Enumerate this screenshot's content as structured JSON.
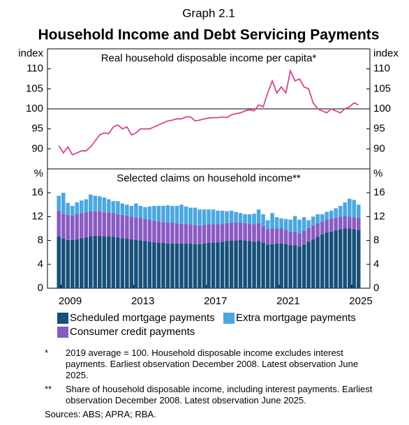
{
  "header": {
    "label": "Graph 2.1",
    "title": "Household Income and Debt Servicing Payments"
  },
  "chart_data": [
    {
      "type": "line",
      "title": "Real household disposable income per capita*",
      "ylabel": "index",
      "x": [
        2008.875,
        2009.125,
        2009.375,
        2009.625,
        2009.875,
        2010.125,
        2010.375,
        2010.625,
        2010.875,
        2011.125,
        2011.375,
        2011.625,
        2011.875,
        2012.125,
        2012.375,
        2012.625,
        2012.875,
        2013.125,
        2013.375,
        2013.625,
        2013.875,
        2014.125,
        2014.375,
        2014.625,
        2014.875,
        2015.125,
        2015.375,
        2015.625,
        2015.875,
        2016.125,
        2016.375,
        2016.625,
        2016.875,
        2017.125,
        2017.375,
        2017.625,
        2017.875,
        2018.125,
        2018.375,
        2018.625,
        2018.875,
        2019.125,
        2019.375,
        2019.625,
        2019.875,
        2020.125,
        2020.375,
        2020.625,
        2020.875,
        2021.125,
        2021.375,
        2021.625,
        2021.875,
        2022.125,
        2022.375,
        2022.625,
        2022.875,
        2023.125,
        2023.375,
        2023.625,
        2023.875,
        2024.125,
        2024.375,
        2024.625,
        2024.875,
        2025.125,
        2025.375
      ],
      "series": [
        {
          "name": "Real household disposable income per capita",
          "color": "#d6458f",
          "values": [
            90.8,
            89,
            90.5,
            88.5,
            89,
            89.5,
            89.5,
            90.5,
            92,
            93.5,
            94,
            93.8,
            95.5,
            96,
            95,
            95.5,
            93.5,
            94,
            95,
            95,
            95,
            95.5,
            96,
            96.5,
            97,
            97.2,
            97.5,
            97.5,
            98,
            98,
            97,
            97.2,
            97.5,
            97.7,
            97.8,
            97.8,
            98,
            97.8,
            98.5,
            98.8,
            99,
            99.5,
            99.8,
            99.5,
            101,
            100.5,
            104,
            107,
            104,
            105.5,
            104,
            109.5,
            107,
            107.5,
            105.5,
            105,
            101.5,
            100,
            99.5,
            99,
            100,
            99.5,
            99,
            100,
            100.5,
            101.5,
            101
          ]
        }
      ],
      "xlim": [
        2008.25,
        2026
      ],
      "ylim": [
        85,
        115
      ],
      "yticks": [
        90,
        95,
        100,
        105,
        110
      ],
      "reference_line": 100
    },
    {
      "type": "bar",
      "stacked": true,
      "title": "Selected claims on household income**",
      "ylabel": "%",
      "x": [
        2008.875,
        2009.125,
        2009.375,
        2009.625,
        2009.875,
        2010.125,
        2010.375,
        2010.625,
        2010.875,
        2011.125,
        2011.375,
        2011.625,
        2011.875,
        2012.125,
        2012.375,
        2012.625,
        2012.875,
        2013.125,
        2013.375,
        2013.625,
        2013.875,
        2014.125,
        2014.375,
        2014.625,
        2014.875,
        2015.125,
        2015.375,
        2015.625,
        2015.875,
        2016.125,
        2016.375,
        2016.625,
        2016.875,
        2017.125,
        2017.375,
        2017.625,
        2017.875,
        2018.125,
        2018.375,
        2018.625,
        2018.875,
        2019.125,
        2019.375,
        2019.625,
        2019.875,
        2020.125,
        2020.375,
        2020.625,
        2020.875,
        2021.125,
        2021.375,
        2021.625,
        2021.875,
        2022.125,
        2022.375,
        2022.625,
        2022.875,
        2023.125,
        2023.375,
        2023.625,
        2023.875,
        2024.125,
        2024.375,
        2024.625,
        2024.875,
        2025.125,
        2025.375
      ],
      "series": [
        {
          "name": "Scheduled mortgage payments",
          "color": "#17507a",
          "values": [
            8.7,
            8.3,
            8.1,
            8.1,
            8.2,
            8.4,
            8.5,
            8.7,
            8.8,
            8.8,
            8.7,
            8.7,
            8.6,
            8.5,
            8.4,
            8.3,
            8.2,
            8.1,
            8.0,
            7.9,
            7.8,
            7.7,
            7.6,
            7.6,
            7.5,
            7.5,
            7.5,
            7.5,
            7.5,
            7.5,
            7.4,
            7.4,
            7.5,
            7.6,
            7.6,
            7.7,
            7.8,
            7.9,
            8.0,
            8.0,
            8.1,
            8.0,
            7.9,
            7.8,
            7.9,
            7.6,
            7.3,
            7.4,
            7.5,
            7.5,
            7.4,
            7.2,
            7.2,
            7.0,
            7.3,
            7.8,
            8.2,
            8.6,
            9.0,
            9.3,
            9.5,
            9.7,
            9.9,
            10.0,
            10.0,
            9.9,
            9.8
          ]
        },
        {
          "name": "Consumer credit payments",
          "color": "#8a5ac4",
          "values": [
            4.3,
            4.2,
            4.2,
            4.1,
            4.2,
            4.2,
            4.2,
            4.2,
            4.1,
            4.1,
            4.0,
            4.0,
            4.0,
            3.9,
            3.9,
            3.8,
            3.8,
            3.8,
            3.8,
            3.7,
            3.7,
            3.6,
            3.6,
            3.5,
            3.5,
            3.5,
            3.4,
            3.3,
            3.3,
            3.2,
            3.2,
            3.1,
            3.1,
            3.1,
            3.1,
            3.0,
            3.0,
            3.0,
            3.0,
            3.0,
            2.9,
            2.9,
            2.9,
            2.9,
            3.0,
            2.8,
            2.6,
            2.6,
            2.5,
            2.5,
            2.4,
            2.3,
            2.3,
            2.2,
            2.3,
            2.3,
            2.3,
            2.3,
            2.2,
            2.2,
            2.2,
            2.1,
            2.1,
            2.1,
            2.0,
            2.0,
            2.0
          ]
        },
        {
          "name": "Extra mortgage payments",
          "color": "#4aa8e0",
          "values": [
            2.5,
            3.5,
            2.0,
            1.6,
            2.0,
            2.1,
            2.2,
            2.8,
            2.6,
            2.5,
            2.5,
            2.2,
            2.0,
            2.2,
            1.9,
            1.9,
            1.8,
            2.3,
            2.0,
            2.0,
            2.2,
            2.5,
            2.6,
            2.7,
            2.9,
            2.8,
            2.9,
            3.2,
            2.9,
            2.8,
            2.9,
            2.7,
            2.6,
            2.5,
            2.5,
            2.3,
            2.2,
            2.0,
            2.0,
            1.8,
            1.6,
            1.5,
            1.6,
            1.8,
            2.3,
            2.0,
            1.5,
            2.6,
            1.9,
            1.7,
            1.8,
            2.0,
            2.6,
            2.3,
            2.3,
            1.3,
            1.5,
            1.5,
            1.2,
            1.3,
            1.3,
            1.6,
            1.8,
            2.3,
            3.0,
            2.9,
            2.2
          ]
        }
      ],
      "xlim": [
        2008.25,
        2026
      ],
      "ylim": [
        0,
        20
      ],
      "yticks": [
        0,
        4,
        8,
        12,
        16
      ],
      "xticks": [
        2009,
        2013,
        2017,
        2021,
        2025
      ],
      "legend": "bottom"
    }
  ],
  "notes": [
    {
      "marker": "*",
      "text": "2019 average = 100. Household disposable income excludes interest payments. Earliest observation December 2008. Latest observation June 2025."
    },
    {
      "marker": "**",
      "text": "Share of household disposable income, including interest payments. Earliest observation December 2008. Latest observation June 2025."
    }
  ],
  "sources": "Sources: ABS; APRA; RBA."
}
